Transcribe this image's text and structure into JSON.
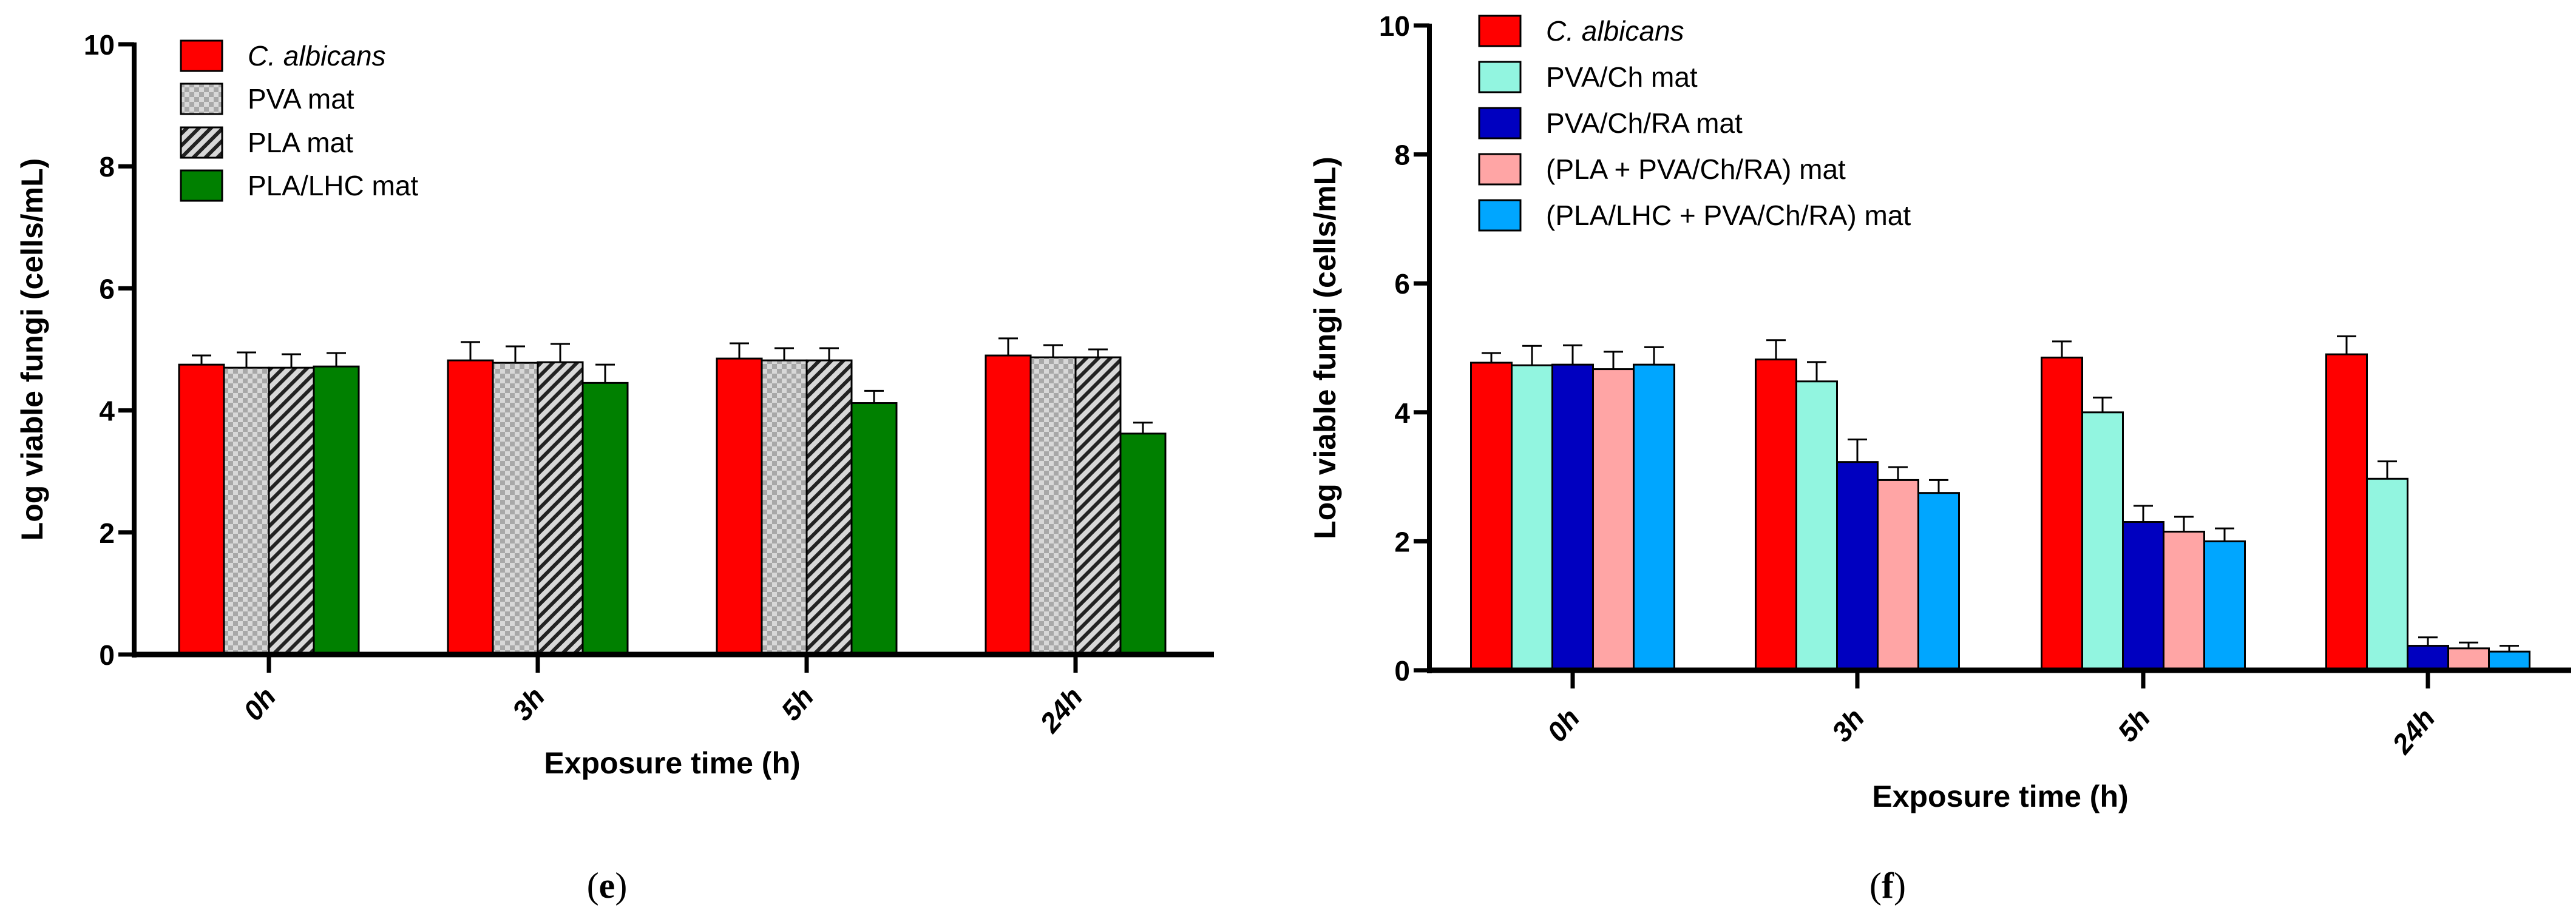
{
  "chart_data": [
    {
      "type": "bar",
      "panel": "e",
      "caption_open": "(",
      "caption_letter": "e",
      "caption_close": ")",
      "xlabel": "Exposure time (h)",
      "ylabel": "Log viable fungi (cells/mL)",
      "ylim": [
        0,
        10
      ],
      "yticks": [
        "0",
        "2",
        "4",
        "6",
        "8",
        "10"
      ],
      "categories": [
        "0h",
        "3h",
        "5h",
        "24h"
      ],
      "legend_position": "top-left",
      "series": [
        {
          "name": "C. albicans",
          "italic": true,
          "color": "#ff0000",
          "fill": "solid",
          "values": [
            4.75,
            4.82,
            4.85,
            4.9
          ],
          "errors": [
            0.15,
            0.3,
            0.25,
            0.28
          ]
        },
        {
          "name": "PVA mat",
          "color": "#b0b0b0",
          "fill": "checker",
          "values": [
            4.7,
            4.78,
            4.82,
            4.87
          ],
          "errors": [
            0.25,
            0.27,
            0.2,
            0.2
          ]
        },
        {
          "name": "PLA mat",
          "color": "#d0d0d0",
          "fill": "hatch",
          "values": [
            4.7,
            4.79,
            4.82,
            4.87
          ],
          "errors": [
            0.22,
            0.3,
            0.2,
            0.13
          ]
        },
        {
          "name": "PLA/LHC mat",
          "color": "#008000",
          "fill": "solid",
          "values": [
            4.72,
            4.45,
            4.12,
            3.62
          ],
          "errors": [
            0.22,
            0.3,
            0.2,
            0.18
          ]
        }
      ]
    },
    {
      "type": "bar",
      "panel": "f",
      "caption_open": "(",
      "caption_letter": "f",
      "caption_close": ")",
      "xlabel": "Exposure time (h)",
      "ylabel": "Log viable fungi  (cells/mL)",
      "ylim": [
        0,
        10
      ],
      "yticks": [
        "0",
        "2",
        "4",
        "6",
        "8",
        "10"
      ],
      "categories": [
        "0h",
        "3h",
        "5h",
        "24h"
      ],
      "legend_position": "top-left",
      "series": [
        {
          "name": "C. albicans",
          "italic": true,
          "color": "#ff0000",
          "fill": "solid",
          "values": [
            4.77,
            4.82,
            4.85,
            4.9
          ],
          "errors": [
            0.15,
            0.3,
            0.25,
            0.28
          ]
        },
        {
          "name": "PVA/Ch mat",
          "color": "#92f5e0",
          "fill": "solid",
          "values": [
            4.73,
            4.48,
            4.0,
            2.97
          ],
          "errors": [
            0.3,
            0.3,
            0.23,
            0.27
          ]
        },
        {
          "name": "PVA/Ch/RA mat",
          "color": "#0000c0",
          "fill": "solid",
          "values": [
            4.74,
            3.23,
            2.3,
            0.38
          ],
          "errors": [
            0.3,
            0.35,
            0.25,
            0.13
          ]
        },
        {
          "name": "(PLA + PVA/Ch/RA) mat",
          "color": "#ffa5a5",
          "fill": "solid",
          "values": [
            4.67,
            2.95,
            2.15,
            0.34
          ],
          "errors": [
            0.27,
            0.2,
            0.23,
            0.09
          ]
        },
        {
          "name": "(PLA/LHC + PVA/Ch/RA) mat",
          "color": "#00a6ff",
          "fill": "solid",
          "values": [
            4.74,
            2.75,
            2.0,
            0.29
          ],
          "errors": [
            0.27,
            0.2,
            0.2,
            0.09
          ]
        }
      ]
    }
  ]
}
